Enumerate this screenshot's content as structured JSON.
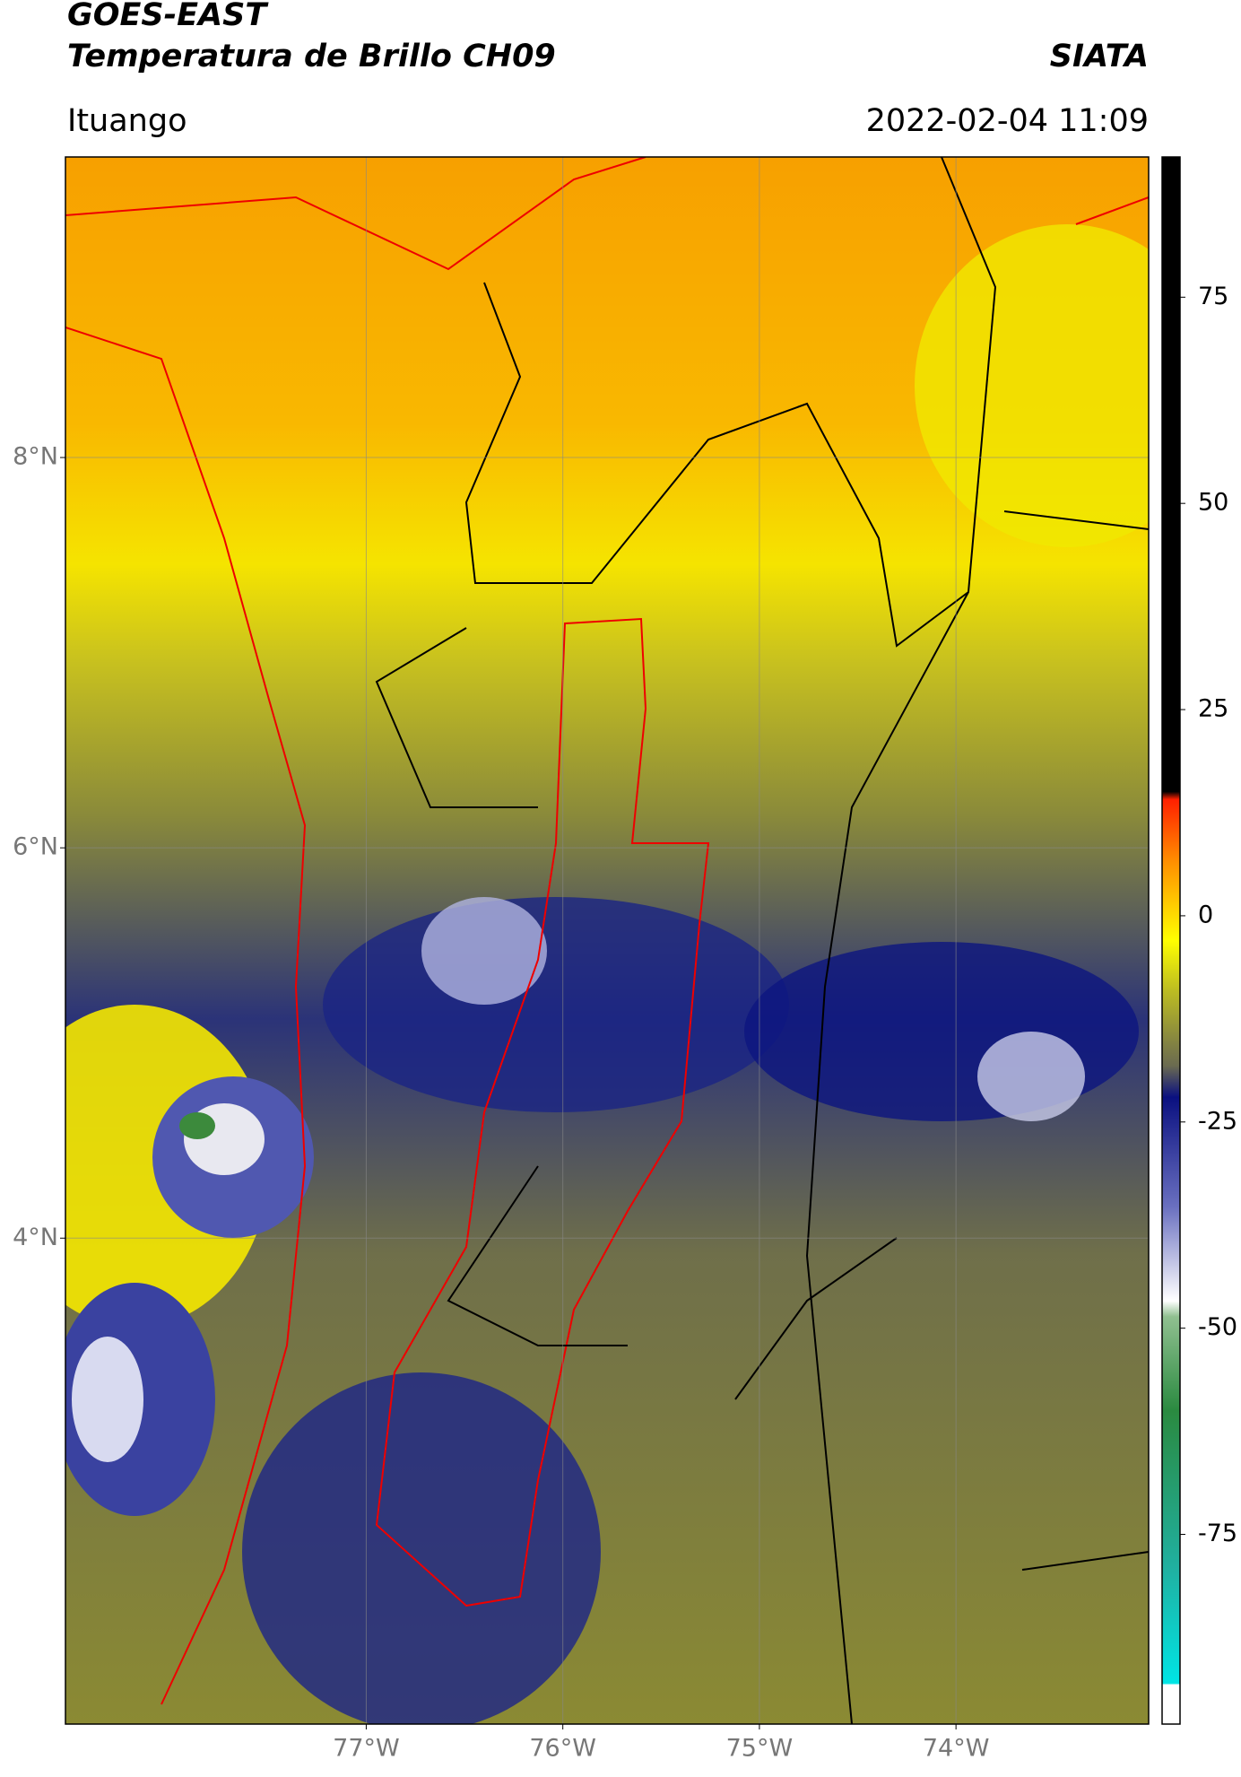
{
  "chart_data": {
    "type": "map",
    "title": [
      "GOES-EAST",
      "Temperatura de Brillo CH09"
    ],
    "source": "SIATA",
    "location": "Ituango",
    "datetime": "2022-02-04 11:09",
    "xlim": [
      -78.53,
      -73.02
    ],
    "ylim": [
      1.51,
      9.54
    ],
    "xticks": [
      {
        "value": -77,
        "label": "77°W"
      },
      {
        "value": -76,
        "label": "76°W"
      },
      {
        "value": -75,
        "label": "75°W"
      },
      {
        "value": -74,
        "label": "74°W"
      }
    ],
    "yticks": [
      {
        "value": 8,
        "label": "8°N"
      },
      {
        "value": 6,
        "label": "6°N"
      },
      {
        "value": 4,
        "label": "4°N"
      }
    ],
    "grid": true,
    "colorbar": {
      "lim": [
        -98,
        92
      ],
      "ticks": [
        75,
        50,
        25,
        0,
        -25,
        -50,
        -75
      ]
    }
  }
}
